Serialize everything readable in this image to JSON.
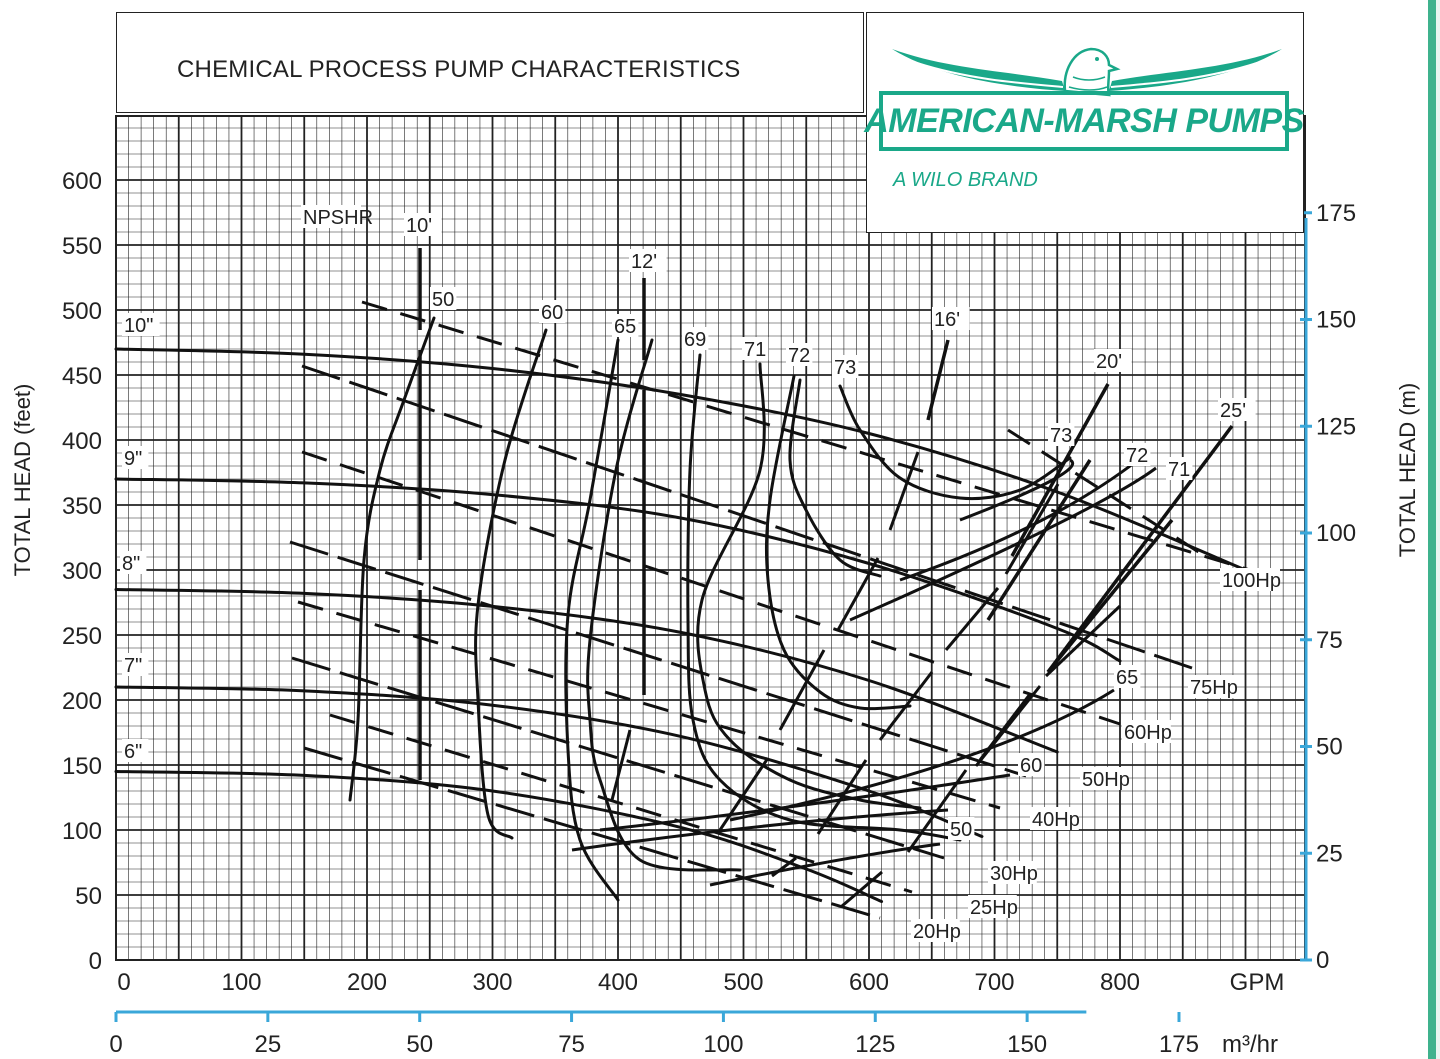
{
  "title": "CHEMICAL PROCESS PUMP CHARACTERISTICS",
  "logo": {
    "name": "AMERICAN-MARSH PUMPS",
    "tagline": "A WILO BRAND",
    "color": "#1aa889"
  },
  "chart_data": {
    "type": "line",
    "title": "CHEMICAL PROCESS PUMP CHARACTERISTICS",
    "xlabel": "GPM",
    "x2label": "m³/hr",
    "ylabel": "TOTAL HEAD (feet)",
    "y2label": "TOTAL HEAD (m)",
    "xlim": [
      0,
      900
    ],
    "ylim": [
      0,
      650
    ],
    "x_ticks": [
      "0",
      "100",
      "200",
      "300",
      "400",
      "500",
      "600",
      "700",
      "800"
    ],
    "x2_ticks": [
      "0",
      "25",
      "50",
      "75",
      "100",
      "125",
      "150",
      "175"
    ],
    "y_ticks": [
      "0",
      "50",
      "100",
      "150",
      "200",
      "250",
      "300",
      "350",
      "400",
      "450",
      "500",
      "550",
      "600"
    ],
    "y2_ticks": [
      "0",
      "25",
      "50",
      "75",
      "100",
      "125",
      "150",
      "175"
    ],
    "grid": true,
    "series": [
      {
        "name": "10\"",
        "x": [
          0,
          150,
          300,
          450,
          600,
          750,
          900
        ],
        "y": [
          470,
          466,
          455,
          435,
          405,
          360,
          300
        ]
      },
      {
        "name": "9\"",
        "x": [
          0,
          150,
          300,
          450,
          600,
          750,
          800
        ],
        "y": [
          370,
          367,
          358,
          340,
          305,
          255,
          230
        ]
      },
      {
        "name": "8\"",
        "x": [
          0,
          150,
          300,
          450,
          600,
          750
        ],
        "y": [
          285,
          282,
          272,
          252,
          215,
          160
        ]
      },
      {
        "name": "7\"",
        "x": [
          0,
          150,
          300,
          450,
          600,
          690
        ],
        "y": [
          210,
          207,
          196,
          172,
          130,
          95
        ]
      },
      {
        "name": "6\"",
        "x": [
          0,
          150,
          300,
          450,
          550,
          610
        ],
        "y": [
          145,
          142,
          130,
          102,
          70,
          45
        ]
      }
    ],
    "efficiency_labels": [
      "50",
      "60",
      "65",
      "69",
      "71",
      "72",
      "73",
      "73",
      "72",
      "71",
      "65",
      "60",
      "50"
    ],
    "npshr_labels": [
      "NPSHR",
      "10'",
      "12'",
      "16'",
      "20'",
      "25'"
    ],
    "hp_labels": [
      "100Hp",
      "75Hp",
      "60Hp",
      "50Hp",
      "40Hp",
      "30Hp",
      "25Hp",
      "20Hp"
    ]
  }
}
